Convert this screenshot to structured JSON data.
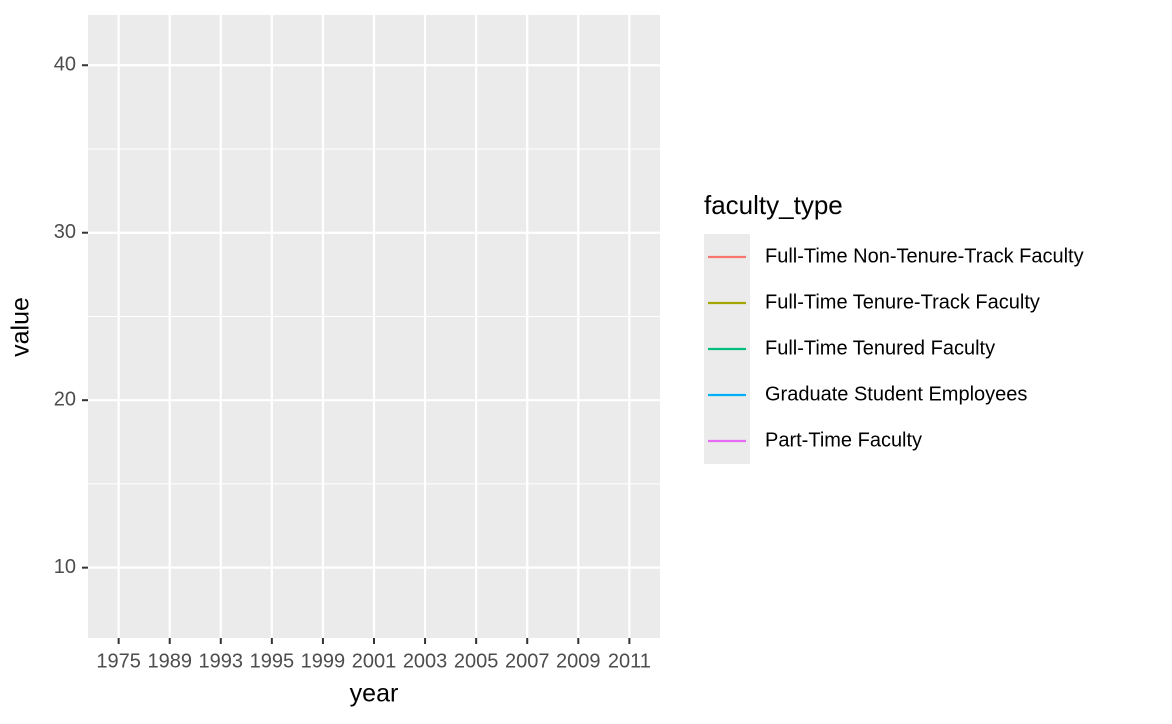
{
  "chart_data": {
    "type": "line",
    "x_label": "year",
    "y_label": "value",
    "categories": [
      "1975",
      "1989",
      "1993",
      "1995",
      "1999",
      "2001",
      "2003",
      "2005",
      "2007",
      "2009",
      "2011"
    ],
    "series": [
      {
        "name": "Full-Time Non-Tenure-Track Faculty",
        "color": "#F8766D",
        "values": [
          null,
          null,
          null,
          null,
          null,
          null,
          null,
          null,
          null,
          null,
          null
        ]
      },
      {
        "name": "Full-Time Tenure-Track Faculty",
        "color": "#A3A500",
        "values": [
          null,
          null,
          null,
          null,
          null,
          null,
          null,
          null,
          null,
          null,
          null
        ]
      },
      {
        "name": "Full-Time Tenured Faculty",
        "color": "#00BF7D",
        "values": [
          null,
          null,
          null,
          null,
          null,
          null,
          null,
          null,
          null,
          null,
          null
        ]
      },
      {
        "name": "Graduate Student Employees",
        "color": "#00B0F6",
        "values": [
          null,
          null,
          null,
          null,
          null,
          null,
          null,
          null,
          null,
          null,
          null
        ]
      },
      {
        "name": "Part-Time Faculty",
        "color": "#E76BF3",
        "values": [
          null,
          null,
          null,
          null,
          null,
          null,
          null,
          null,
          null,
          null,
          null
        ]
      }
    ],
    "legend_title": "faculty_type",
    "legend_position": "right",
    "ylim": [
      5.8,
      43
    ],
    "yticks": [
      10,
      20,
      30,
      40
    ],
    "grid": true
  }
}
